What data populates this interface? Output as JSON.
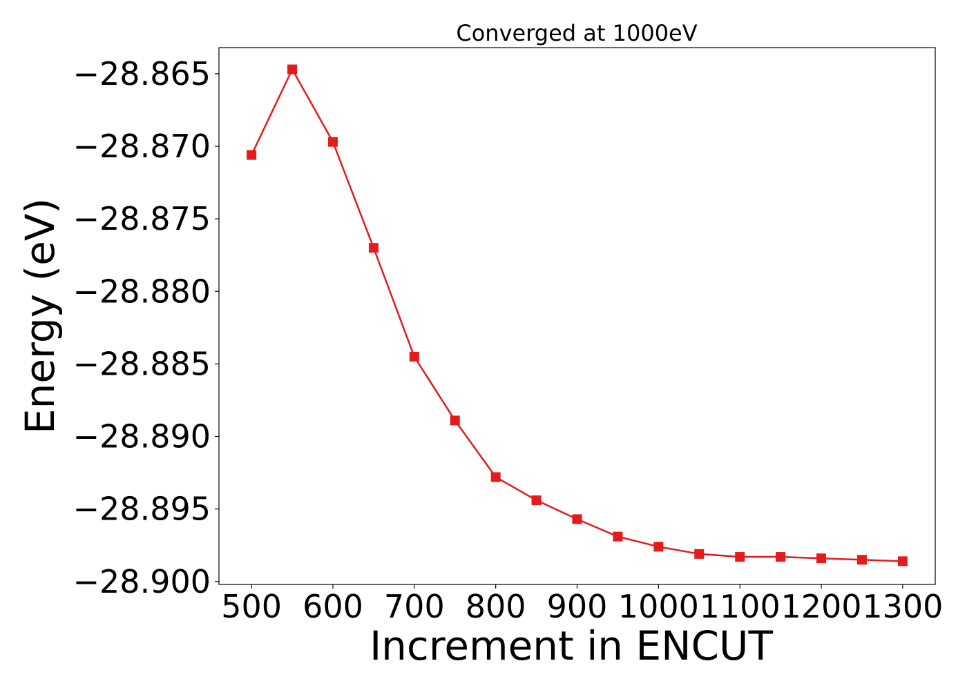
{
  "chart_data": {
    "type": "line",
    "title": "Converged at 1000eV",
    "xlabel": "Increment in ENCUT",
    "ylabel": "Energy (eV)",
    "xlim": [
      460,
      1340
    ],
    "ylim": [
      -28.9002,
      -28.8632
    ],
    "xticks": [
      500,
      600,
      700,
      800,
      900,
      1000,
      1100,
      1200,
      1300
    ],
    "yticks": [
      -28.865,
      -28.87,
      -28.875,
      -28.88,
      -28.885,
      -28.89,
      -28.895,
      -28.9
    ],
    "ytick_labels": [
      "−28.865",
      "−28.870",
      "−28.875",
      "−28.880",
      "−28.885",
      "−28.890",
      "−28.895",
      "−28.900"
    ],
    "grid": false,
    "series": [
      {
        "color": "#e41a1c",
        "marker": "square",
        "x": [
          500,
          550,
          600,
          650,
          700,
          750,
          800,
          850,
          900,
          950,
          1000,
          1050,
          1100,
          1150,
          1200,
          1250,
          1300
        ],
        "y": [
          -28.8706,
          -28.8647,
          -28.8697,
          -28.877,
          -28.8845,
          -28.8889,
          -28.8928,
          -28.8944,
          -28.8957,
          -28.8969,
          -28.8976,
          -28.8981,
          -28.8983,
          -28.8983,
          -28.8984,
          -28.8985,
          -28.8986
        ]
      }
    ]
  }
}
